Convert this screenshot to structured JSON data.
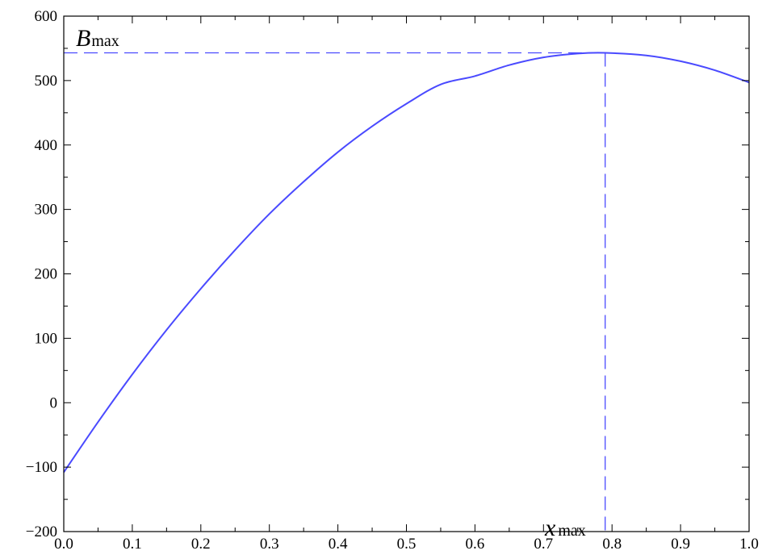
{
  "chart_data": {
    "type": "line",
    "title": "",
    "xlabel": "",
    "ylabel": "",
    "xlim": [
      0.0,
      1.0
    ],
    "ylim": [
      -200,
      600
    ],
    "x_ticks": [
      "0.0",
      "0.1",
      "0.2",
      "0.3",
      "0.4",
      "0.5",
      "0.6",
      "0.7",
      "0.8",
      "0.9",
      "1.0"
    ],
    "y_ticks": [
      "−200",
      "−100",
      "0",
      "100",
      "200",
      "300",
      "400",
      "500",
      "600"
    ],
    "grid": false,
    "legend": "none",
    "series": [
      {
        "color": "#4a4aff",
        "x": [
          0.0,
          0.05,
          0.1,
          0.15,
          0.2,
          0.25,
          0.3,
          0.35,
          0.4,
          0.45,
          0.5,
          0.55,
          0.6,
          0.65,
          0.7,
          0.75,
          0.79,
          0.85,
          0.9,
          0.95,
          1.0
        ],
        "y": [
          -108,
          -30,
          44,
          113,
          177,
          237,
          293,
          343,
          389,
          429,
          464,
          494,
          507,
          524,
          536,
          542,
          543,
          539,
          530,
          516,
          497
        ]
      }
    ],
    "annotations": {
      "x_max": {
        "x": 0.79,
        "label_main": "x",
        "label_sub": "max"
      },
      "B_max": {
        "y": 543,
        "label_main": "B",
        "label_sub": "max"
      },
      "guide_color": "#4a4aff"
    }
  }
}
